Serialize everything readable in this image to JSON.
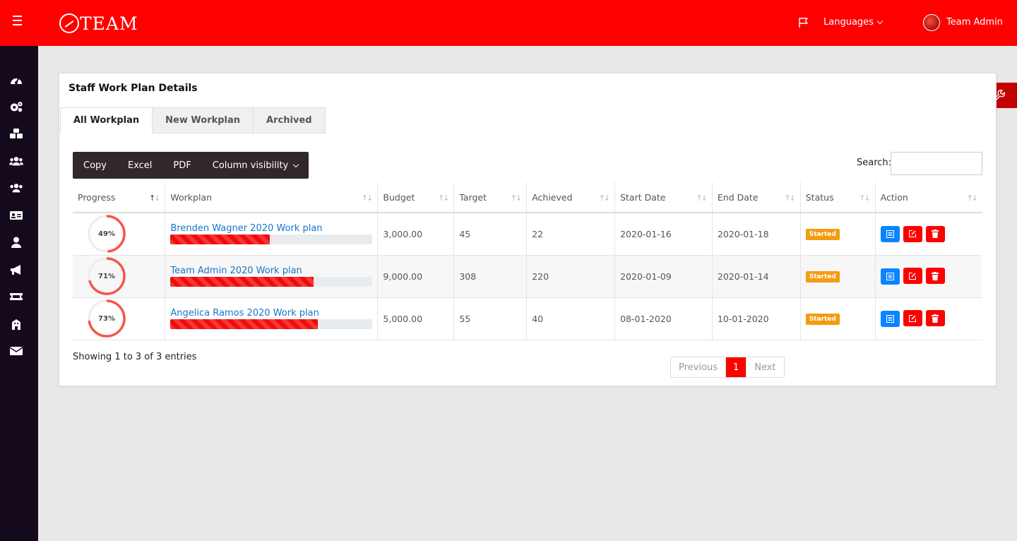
{
  "header": {
    "logo_text": "TEAM",
    "languages_label": "Languages",
    "user_name": "Team Admin"
  },
  "sidebar": {
    "items": [
      {
        "icon": "dashboard-icon"
      },
      {
        "icon": "settings-icon"
      },
      {
        "icon": "cubes-icon"
      },
      {
        "icon": "users-icon"
      },
      {
        "icon": "group-icon"
      },
      {
        "icon": "id-card-icon"
      },
      {
        "icon": "user-icon"
      },
      {
        "icon": "megaphone-icon"
      },
      {
        "icon": "ticket-icon"
      },
      {
        "icon": "building-icon"
      },
      {
        "icon": "mail-icon"
      }
    ]
  },
  "card": {
    "title": "Staff Work Plan Details",
    "tabs": [
      "All Workplan",
      "New Workplan",
      "Archived"
    ]
  },
  "toolbar": {
    "copy": "Copy",
    "excel": "Excel",
    "pdf": "PDF",
    "column_visibility": "Column visibility",
    "search_label": "Search:",
    "search_value": ""
  },
  "table": {
    "columns": [
      "Progress",
      "Workplan",
      "Budget",
      "Target",
      "Achieved",
      "Start Date",
      "End Date",
      "Status",
      "Action"
    ],
    "rows": [
      {
        "progress": 49,
        "progress_label": "49%",
        "workplan": "Brenden Wagner 2020 Work plan",
        "budget": "3,000.00",
        "target": "45",
        "achieved": "22",
        "start": "2020-01-16",
        "end": "2020-01-18",
        "status": "Started"
      },
      {
        "progress": 71,
        "progress_label": "71%",
        "workplan": "Team Admin 2020 Work plan",
        "budget": "9,000.00",
        "target": "308",
        "achieved": "220",
        "start": "2020-01-09",
        "end": "2020-01-14",
        "status": "Started"
      },
      {
        "progress": 73,
        "progress_label": "73%",
        "workplan": "Angelica Ramos 2020 Work plan",
        "budget": "5,000.00",
        "target": "55",
        "achieved": "40",
        "start": "08-01-2020",
        "end": "10-01-2020",
        "status": "Started"
      }
    ]
  },
  "footer": {
    "info": "Showing 1 to 3 of 3 entries",
    "previous": "Previous",
    "page": "1",
    "next": "Next"
  },
  "colors": {
    "brand": "#ff0000",
    "sidebar": "#140a1b",
    "link": "#1577c9",
    "badge": "#f39c12",
    "ring": "#f5564a"
  }
}
